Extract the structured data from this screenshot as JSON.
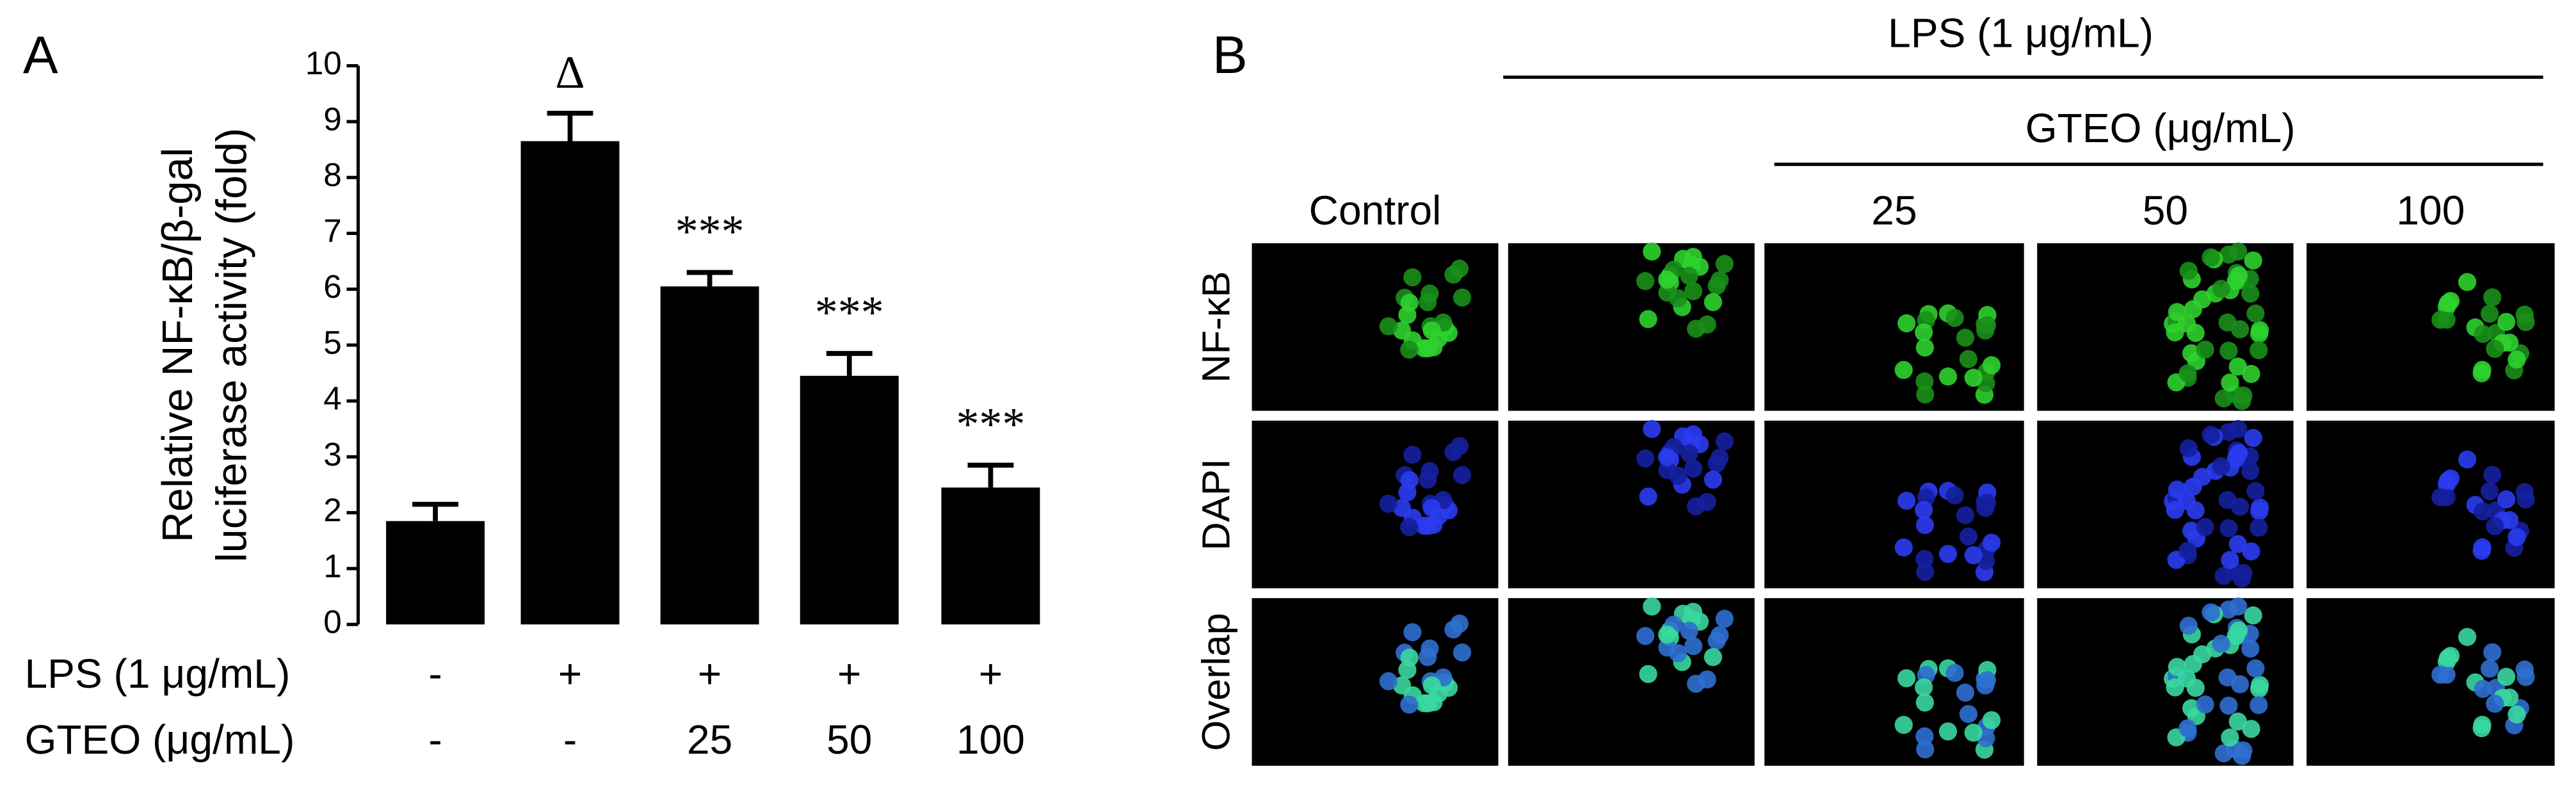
{
  "chart_data": {
    "type": "bar",
    "panel_label": "A",
    "y_label": [
      "Relative NF-κB/β-gal",
      "luciferase activity (fold)"
    ],
    "row_labels": [
      "LPS (1 μg/mL)",
      "GTEO (μg/mL)"
    ],
    "rows": [
      [
        "-",
        "+",
        "+",
        "+",
        "+"
      ],
      [
        "-",
        "-",
        "25",
        "50",
        "100"
      ]
    ],
    "values": [
      1.85,
      8.65,
      6.05,
      4.45,
      2.45
    ],
    "errors": [
      0.3,
      0.5,
      0.25,
      0.4,
      0.4
    ],
    "annotations": [
      null,
      "Δ",
      "***",
      "***",
      "***"
    ],
    "color": "#000000",
    "ylim": [
      0,
      10
    ],
    "yticks": [
      0,
      1,
      2,
      3,
      4,
      5,
      6,
      7,
      8,
      9,
      10
    ]
  },
  "panel_b": {
    "panel_label": "B",
    "header": "LPS (1 μg/mL)",
    "subheader": "GTEO (μg/mL)",
    "column_labels": [
      "Control",
      null,
      "25",
      "50",
      "100"
    ],
    "row_labels": [
      "NF-κB",
      "DAPI",
      "Overlap"
    ]
  }
}
